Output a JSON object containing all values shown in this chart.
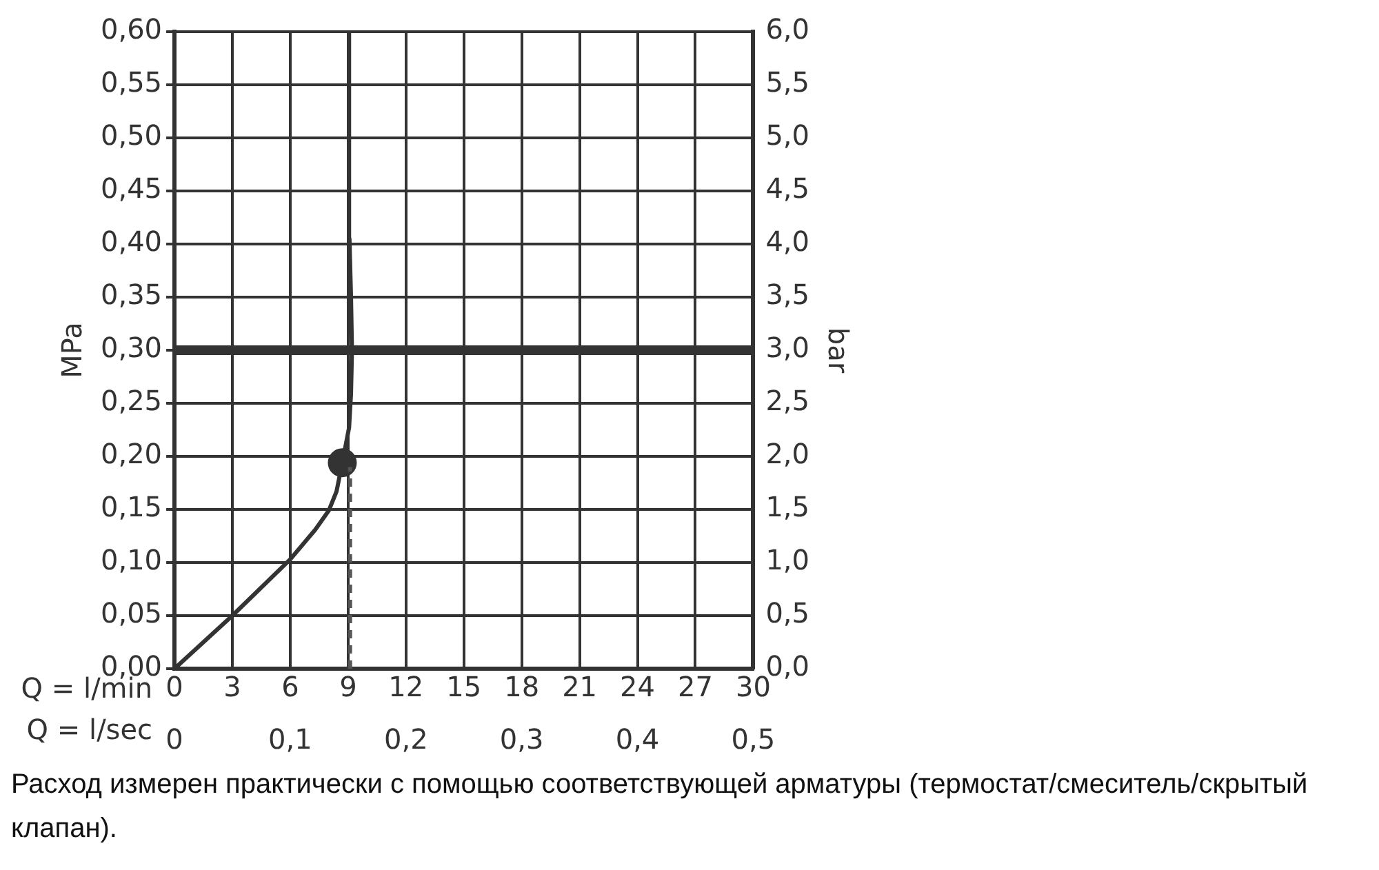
{
  "chart_data": {
    "type": "line",
    "xlabel": "Q = l/min",
    "x2label": "Q = l/sec",
    "ylabel": "MPa",
    "y2label": "bar",
    "xlim": [
      0,
      30
    ],
    "xticks": [
      0,
      3,
      6,
      9,
      12,
      15,
      18,
      21,
      24,
      27,
      30
    ],
    "x2lim": [
      0,
      0.5
    ],
    "x2ticks": [
      0,
      {
        "value": 0.1,
        "label": "0,1"
      },
      {
        "value": 0.2,
        "label": "0,2"
      },
      {
        "value": 0.3,
        "label": "0,3"
      },
      {
        "value": 0.4,
        "label": "0,4"
      },
      {
        "value": 0.5,
        "label": "0,5"
      }
    ],
    "ylim": [
      0,
      0.6
    ],
    "yticks": [
      {
        "value": 0,
        "label": "0,00"
      },
      {
        "value": 0.05,
        "label": "0,05"
      },
      {
        "value": 0.1,
        "label": "0,10"
      },
      {
        "value": 0.15,
        "label": "0,15"
      },
      {
        "value": 0.2,
        "label": "0,20"
      },
      {
        "value": 0.25,
        "label": "0,25"
      },
      {
        "value": 0.3,
        "label": "0,30"
      },
      {
        "value": 0.35,
        "label": "0,35"
      },
      {
        "value": 0.4,
        "label": "0,40"
      },
      {
        "value": 0.45,
        "label": "0,45"
      },
      {
        "value": 0.5,
        "label": "0,50"
      },
      {
        "value": 0.55,
        "label": "0,55"
      },
      {
        "value": 0.6,
        "label": "0,60"
      }
    ],
    "y2lim": [
      0,
      6
    ],
    "y2ticks": [
      {
        "value": 0,
        "label": "0,0"
      },
      {
        "value": 0.5,
        "label": "0,5"
      },
      {
        "value": 1,
        "label": "1,0"
      },
      {
        "value": 1.5,
        "label": "1,5"
      },
      {
        "value": 2,
        "label": "2,0"
      },
      {
        "value": 2.5,
        "label": "2,5"
      },
      {
        "value": 3,
        "label": "3,0"
      },
      {
        "value": 3.5,
        "label": "3,5"
      },
      {
        "value": 4,
        "label": "4,0"
      },
      {
        "value": 4.5,
        "label": "4,5"
      },
      {
        "value": 5,
        "label": "5,0"
      },
      {
        "value": 5.5,
        "label": "5,5"
      },
      {
        "value": 6,
        "label": "6,0"
      }
    ],
    "grid": true,
    "legend": false,
    "series": [
      {
        "type": "line",
        "color": "#333333",
        "marker": "none",
        "line_style": "solid",
        "x": [
          0,
          3,
          6,
          7.3,
          8,
          8.4,
          8.7,
          9.05,
          9.15,
          9.2,
          9.15,
          9.07,
          9.05
        ],
        "values": [
          0,
          0.05,
          0.103,
          0.131,
          0.149,
          0.167,
          0.194,
          0.227,
          0.259,
          0.3,
          0.35,
          0.405,
          0.6
        ]
      },
      {
        "type": "line",
        "color": "#555555",
        "marker": "none",
        "line_style": "dashed",
        "x": [
          9.1,
          9.1
        ],
        "values": [
          0,
          0.19
        ]
      },
      {
        "type": "scatter",
        "color": "#333333",
        "marker": "circle",
        "x": [
          8.7
        ],
        "values": [
          0.194
        ]
      }
    ],
    "ref_lines": [
      {
        "axis": "y",
        "value": 0.3,
        "color": "#333333",
        "line_style": "solid"
      }
    ],
    "annotations": [
      "Расход измерен практически с помощью соответствующей арматуры (термостат/смеситель/скрытый клапан)."
    ]
  }
}
